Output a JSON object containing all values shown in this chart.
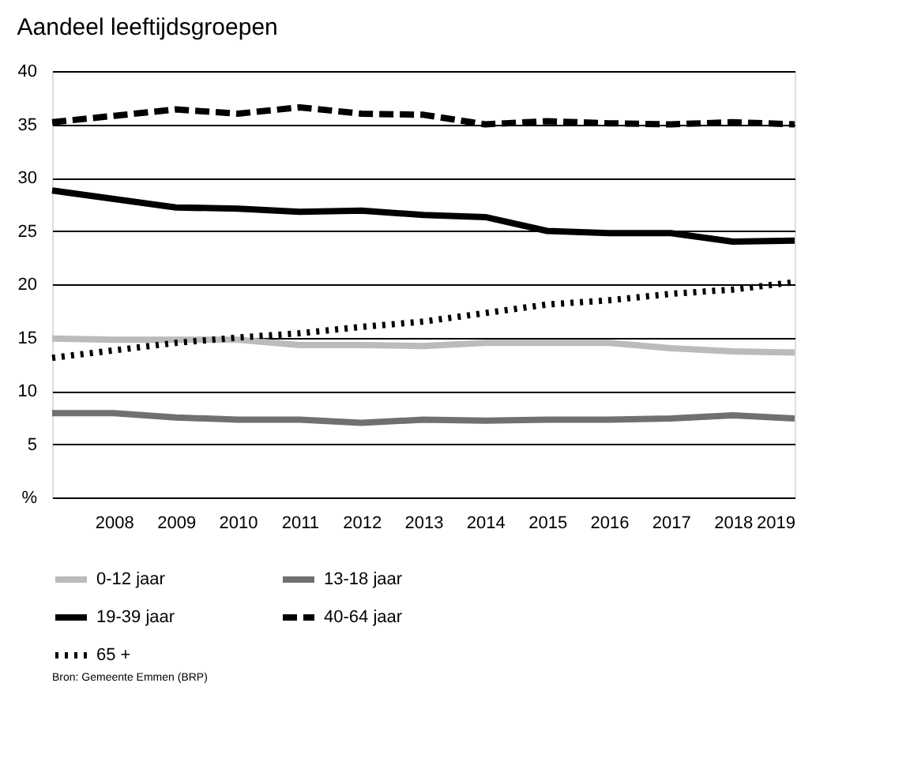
{
  "chart_data": {
    "type": "line",
    "title": "Aandeel leeftijdsgroepen",
    "x": [
      2007,
      2008,
      2009,
      2010,
      2011,
      2012,
      2013,
      2014,
      2015,
      2016,
      2017,
      2018,
      2019
    ],
    "series": [
      {
        "name": "0-12 jaar",
        "color": "#bbbbbb",
        "line_style": "solid",
        "values": [
          14.9,
          14.8,
          14.8,
          14.8,
          14.3,
          14.3,
          14.2,
          14.5,
          14.5,
          14.5,
          14.0,
          13.7,
          13.6
        ]
      },
      {
        "name": "13-18 jaar",
        "color": "#707070",
        "line_style": "solid",
        "values": [
          7.9,
          7.9,
          7.5,
          7.3,
          7.3,
          7.0,
          7.3,
          7.2,
          7.3,
          7.3,
          7.4,
          7.7,
          7.4
        ]
      },
      {
        "name": "19-39 jaar",
        "color": "#000000",
        "line_style": "solid",
        "values": [
          28.8,
          28.0,
          27.2,
          27.1,
          26.8,
          26.9,
          26.5,
          26.3,
          25.0,
          24.8,
          24.8,
          24.0,
          24.1
        ]
      },
      {
        "name": "40-64 jaar",
        "color": "#000000",
        "line_style": "dashed",
        "values": [
          35.2,
          35.8,
          36.4,
          36.0,
          36.6,
          36.0,
          35.9,
          35.0,
          35.3,
          35.1,
          35.0,
          35.2,
          35.0
        ]
      },
      {
        "name": "65 +",
        "color": "#000000",
        "line_style": "dotted",
        "values": [
          13.1,
          13.8,
          14.5,
          15.0,
          15.4,
          16.0,
          16.5,
          17.3,
          18.1,
          18.5,
          19.1,
          19.5,
          20.2
        ]
      }
    ],
    "xlim": [
      2007,
      2019
    ],
    "xticks": [
      2008,
      2009,
      2010,
      2011,
      2012,
      2013,
      2014,
      2015,
      2016,
      2017,
      2018,
      2019
    ],
    "ylim": [
      0,
      40
    ],
    "yticks": [
      {
        "value": 0,
        "label": "%"
      },
      5,
      10,
      15,
      20,
      25,
      30,
      35,
      40
    ],
    "grid": "y",
    "legend": "bottom",
    "marker": "none",
    "annotations": [
      "Bron: Gemeente Emmen (BRP)"
    ]
  }
}
